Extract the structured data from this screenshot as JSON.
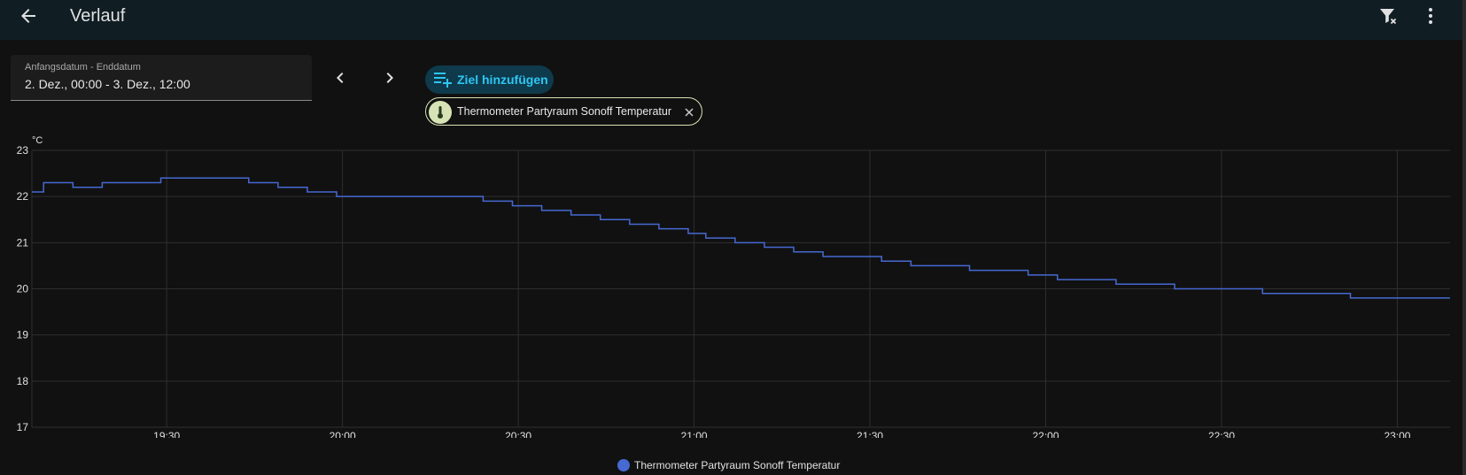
{
  "header": {
    "title": "Verlauf",
    "back_icon": "arrow-left-icon",
    "filter_icon": "filter-remove-icon",
    "menu_icon": "dots-vertical-icon"
  },
  "date_picker": {
    "label": "Anfangsdatum - Enddatum",
    "value": "2. Dez., 00:00 - 3. Dez., 12:00"
  },
  "navigation": {
    "prev_icon": "chevron-left-icon",
    "next_icon": "chevron-right-icon"
  },
  "target": {
    "add_label": "Ziel hinzufügen",
    "add_icon": "playlist-plus-icon",
    "chips": [
      {
        "label": "Thermometer Partyraum Sonoff Temperatur",
        "icon": "thermometer-icon",
        "remove_icon": "close-icon"
      }
    ]
  },
  "colors": {
    "accent": "#2ec6f3",
    "series": "#4669d2",
    "header_bg": "#101e24",
    "chip_avatar": "#d7e3b4"
  },
  "chart_data": {
    "type": "line",
    "step": true,
    "unit": "°C",
    "ylim": [
      17,
      23
    ],
    "yticks": [
      17,
      18,
      19,
      20,
      21,
      22,
      23
    ],
    "xlim": [
      "19:07",
      "23:09"
    ],
    "xticks": [
      "19:30",
      "20:00",
      "20:30",
      "21:00",
      "21:30",
      "22:00",
      "22:30",
      "23:00"
    ],
    "grid": true,
    "legend": "bottom-center",
    "series": [
      {
        "name": "Thermometer Partyraum Sonoff Temperatur",
        "points": [
          [
            "19:07",
            22.1
          ],
          [
            "19:09",
            22.3
          ],
          [
            "19:14",
            22.2
          ],
          [
            "19:19",
            22.3
          ],
          [
            "19:29",
            22.4
          ],
          [
            "19:44",
            22.3
          ],
          [
            "19:49",
            22.2
          ],
          [
            "19:54",
            22.1
          ],
          [
            "19:59",
            22.0
          ],
          [
            "20:24",
            21.9
          ],
          [
            "20:29",
            21.8
          ],
          [
            "20:34",
            21.7
          ],
          [
            "20:39",
            21.6
          ],
          [
            "20:44",
            21.5
          ],
          [
            "20:49",
            21.4
          ],
          [
            "20:54",
            21.3
          ],
          [
            "20:59",
            21.2
          ],
          [
            "21:02",
            21.1
          ],
          [
            "21:07",
            21.0
          ],
          [
            "21:12",
            20.9
          ],
          [
            "21:17",
            20.8
          ],
          [
            "21:22",
            20.7
          ],
          [
            "21:32",
            20.6
          ],
          [
            "21:37",
            20.5
          ],
          [
            "21:47",
            20.4
          ],
          [
            "21:57",
            20.3
          ],
          [
            "22:02",
            20.2
          ],
          [
            "22:12",
            20.1
          ],
          [
            "22:22",
            20.0
          ],
          [
            "22:37",
            19.9
          ],
          [
            "22:52",
            19.8
          ],
          [
            "23:09",
            19.8
          ]
        ]
      }
    ]
  }
}
